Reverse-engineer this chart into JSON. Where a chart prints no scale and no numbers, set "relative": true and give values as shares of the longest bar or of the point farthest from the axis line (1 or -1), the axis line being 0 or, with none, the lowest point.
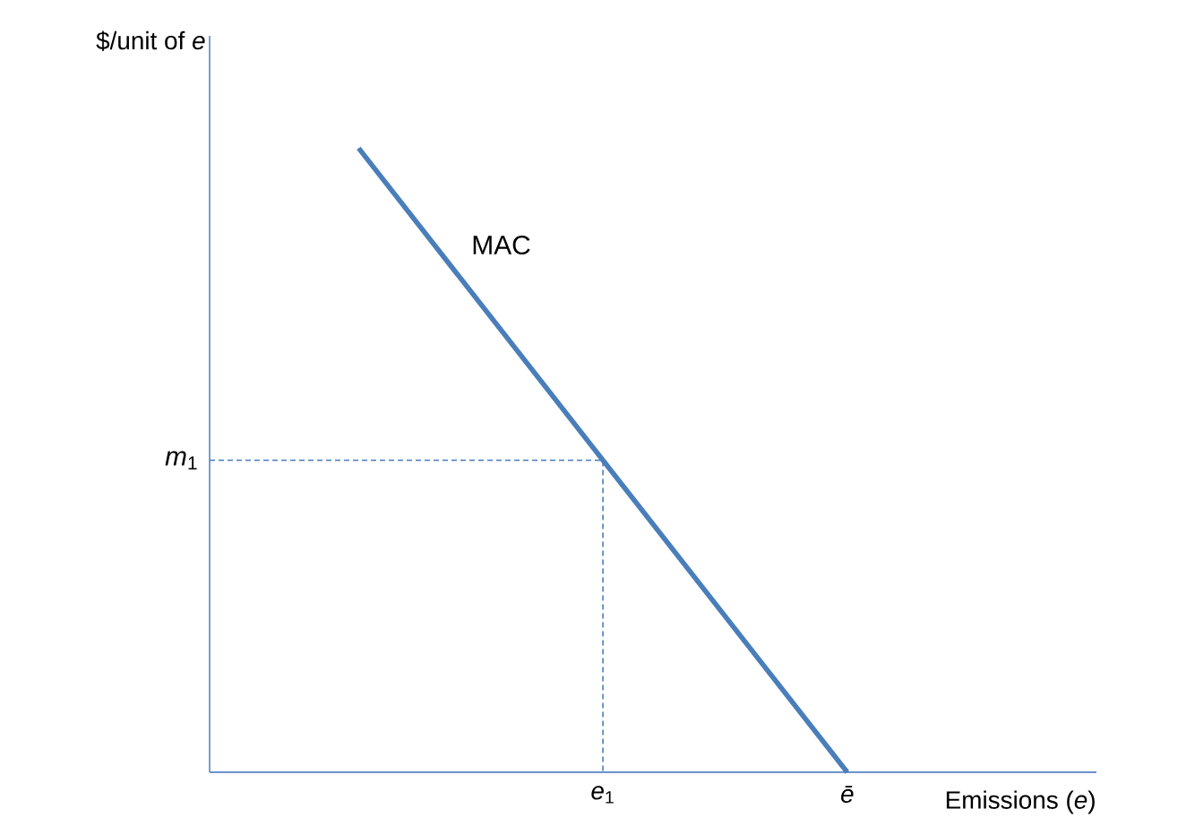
{
  "chart_data": {
    "type": "line",
    "relative": true,
    "xlabel": "Emissions (*e*)",
    "ylabel": "$/unit of *e*",
    "categories": [
      null,
      "*e*$_{1}$",
      "*ē*"
    ],
    "series": [
      {
        "name": "MAC",
        "color": "#4a7ebb",
        "values": [
          1,
          0.5,
          0
        ]
      }
    ],
    "ref_lines": [
      {
        "axis": "y",
        "value": 0.5,
        "label": "*m*$_{1}$",
        "color": "#4a7ebb",
        "line_style": "dashed"
      }
    ],
    "grid": false
  }
}
